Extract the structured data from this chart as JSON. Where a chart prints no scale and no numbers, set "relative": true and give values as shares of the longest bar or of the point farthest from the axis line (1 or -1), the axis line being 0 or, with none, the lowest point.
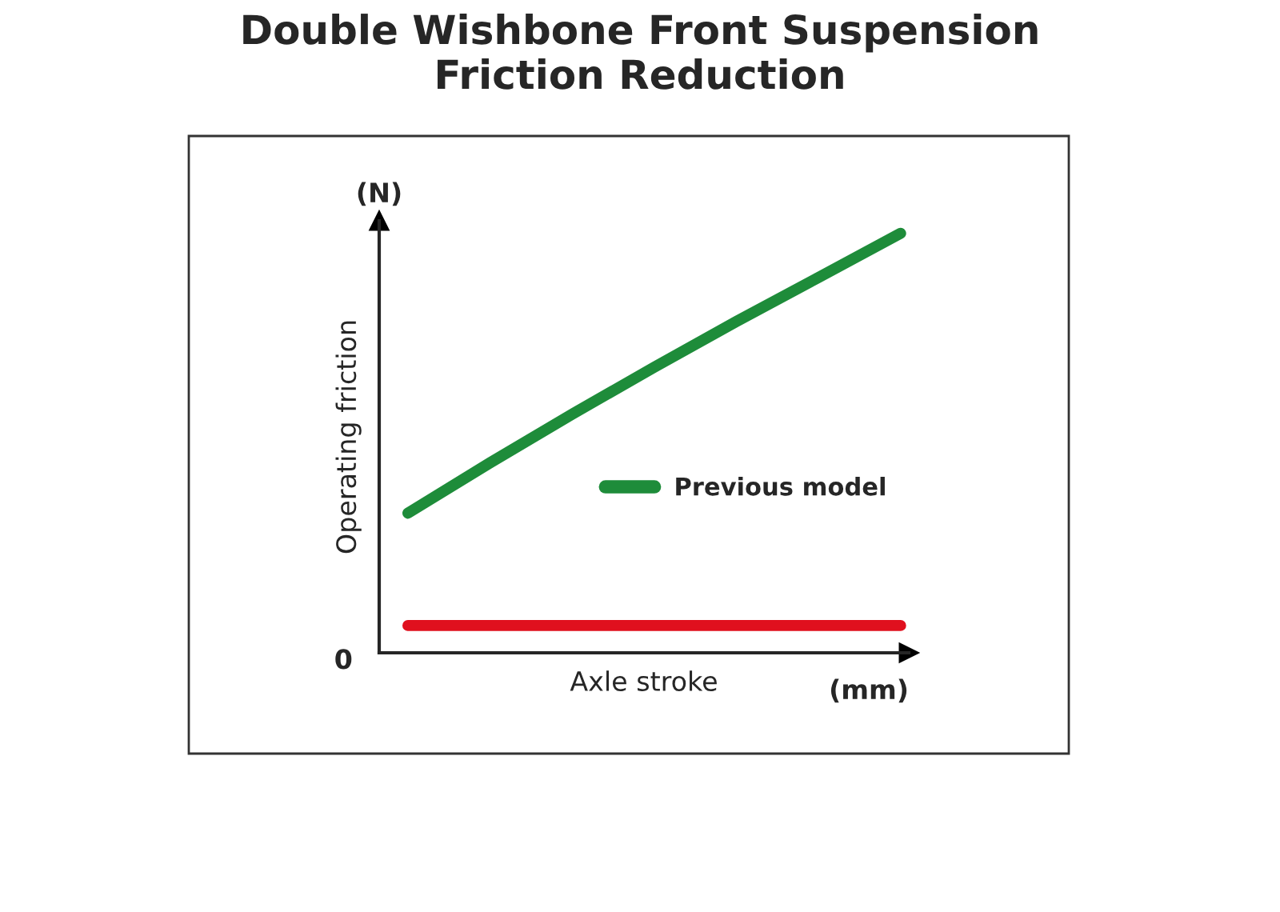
{
  "chart_data": {
    "type": "line",
    "title": "Double Wishbone Front Suspension\nFriction Reduction",
    "xlabel": "Axle stroke",
    "ylabel": "Operating friction",
    "annotations": [
      "(N)",
      "0",
      "(mm)"
    ],
    "categories": [
      null,
      null,
      null,
      null,
      null,
      null,
      null
    ],
    "relative": true,
    "legend": "right",
    "grid": false,
    "tick_labels": false,
    "series": [
      {
        "color": "#e0101e",
        "values": [
          0.065,
          0.065,
          0.065,
          0.065,
          0.065,
          0.065,
          0.065
        ]
      },
      {
        "name": "Previous model",
        "color": "#1e8c3a",
        "values": [
          0.333,
          0.453,
          0.569,
          0.681,
          0.79,
          0.895,
          1.0
        ]
      }
    ]
  }
}
